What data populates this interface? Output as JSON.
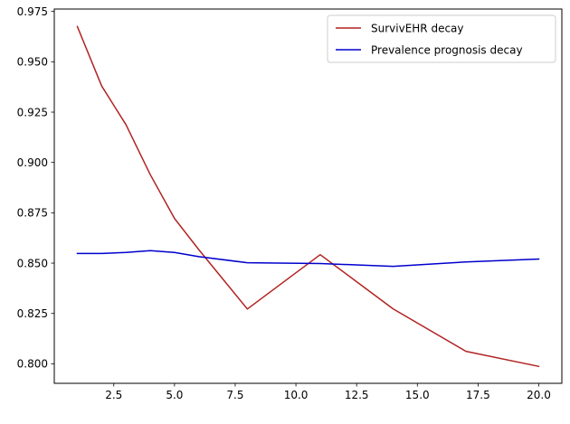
{
  "chart_data": {
    "type": "line",
    "title": "",
    "xlabel": "",
    "ylabel": "",
    "xlim": [
      0.05,
      20.95
    ],
    "ylim": [
      0.7903,
      0.9762
    ],
    "xticks": [
      2.5,
      5.0,
      7.5,
      10.0,
      12.5,
      15.0,
      17.5,
      20.0
    ],
    "xtick_labels": [
      "2.5",
      "5.0",
      "7.5",
      "10.0",
      "12.5",
      "15.0",
      "17.5",
      "20.0"
    ],
    "yticks": [
      0.8,
      0.825,
      0.85,
      0.875,
      0.9,
      0.925,
      0.95,
      0.975
    ],
    "ytick_labels": [
      "0.800",
      "0.825",
      "0.850",
      "0.875",
      "0.900",
      "0.925",
      "0.950",
      "0.975"
    ],
    "grid": false,
    "legend_position": "top-right",
    "series": [
      {
        "name": "SurvivEHR decay",
        "color": "#b22222",
        "x": [
          1,
          2,
          3,
          4,
          5,
          6,
          8,
          11,
          14,
          17,
          20
        ],
        "y": [
          0.9675,
          0.938,
          0.9188,
          0.894,
          0.8722,
          0.8567,
          0.8272,
          0.8542,
          0.8273,
          0.8062,
          0.7987
        ]
      },
      {
        "name": "Prevalence prognosis decay",
        "color": "#0000cd",
        "x": [
          1,
          2,
          3,
          4,
          5,
          6,
          8,
          11,
          14,
          17,
          20
        ],
        "y": [
          0.8548,
          0.8548,
          0.8553,
          0.8562,
          0.8553,
          0.8532,
          0.8502,
          0.8498,
          0.8484,
          0.8506,
          0.852
        ]
      }
    ]
  }
}
